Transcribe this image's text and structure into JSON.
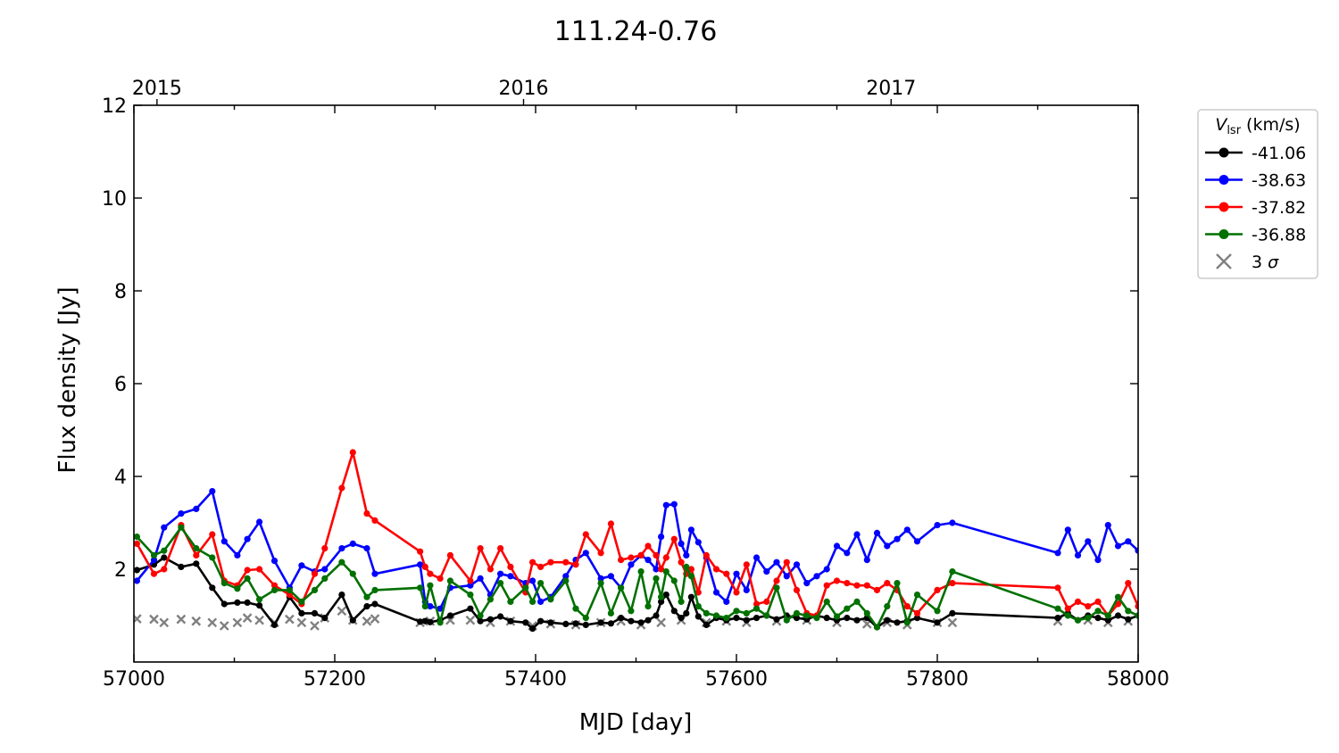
{
  "chart_data": {
    "type": "line",
    "title": "111.24-0.76",
    "xlabel": "MJD [day]",
    "ylabel": "Flux density [Jy]",
    "xlim": [
      57000,
      58000
    ],
    "ylim": [
      0,
      12
    ],
    "x_ticks": [
      57000,
      57200,
      57400,
      57600,
      57800,
      58000
    ],
    "x_tick_labels": [
      "57000",
      "57200",
      "57400",
      "57600",
      "57800",
      "58000"
    ],
    "y_ticks": [
      2,
      4,
      6,
      8,
      10,
      12
    ],
    "y_tick_labels": [
      "2",
      "4",
      "6",
      "8",
      "10",
      "12"
    ],
    "top_axis": {
      "ticks": [
        57023,
        57388,
        57754
      ],
      "labels": [
        "2015",
        "2016",
        "2017"
      ]
    },
    "grid": false,
    "legend": {
      "title_symbol": "V",
      "title_subscript": "lsr",
      "title_unit": "(km/s)",
      "placement": "outside-right",
      "sigma_label_prefix": "3 ",
      "sigma_label_symbol": "σ"
    },
    "series": [
      {
        "name": "-41.06",
        "color": "#000000",
        "x": [
          57003,
          57020,
          57030,
          57047,
          57062,
          57078,
          57090,
          57103,
          57113,
          57125,
          57140,
          57155,
          57167,
          57180,
          57190,
          57207,
          57218,
          57232,
          57240,
          57285,
          57290,
          57295,
          57305,
          57315,
          57335,
          57345,
          57355,
          57365,
          57375,
          57390,
          57397,
          57405,
          57415,
          57430,
          57440,
          57450,
          57465,
          57475,
          57485,
          57495,
          57505,
          57512,
          57520,
          57525,
          57530,
          57538,
          57545,
          57550,
          57555,
          57562,
          57570,
          57580,
          57590,
          57600,
          57610,
          57620,
          57630,
          57640,
          57650,
          57660,
          57670,
          57680,
          57690,
          57700,
          57710,
          57720,
          57730,
          57740,
          57750,
          57760,
          57770,
          57780,
          57800,
          57815,
          57920,
          57930,
          57940,
          57950,
          57960,
          57970,
          57980,
          57990,
          58000
        ],
        "y": [
          1.98,
          2.1,
          2.25,
          2.05,
          2.12,
          1.6,
          1.25,
          1.28,
          1.28,
          1.22,
          0.8,
          1.4,
          1.05,
          1.05,
          0.95,
          1.45,
          0.9,
          1.2,
          1.25,
          0.87,
          0.88,
          0.86,
          0.9,
          1.0,
          1.15,
          0.88,
          0.92,
          0.98,
          0.88,
          0.85,
          0.72,
          0.88,
          0.85,
          0.82,
          0.83,
          0.8,
          0.85,
          0.83,
          0.95,
          0.88,
          0.85,
          0.9,
          1.0,
          1.3,
          1.45,
          1.1,
          0.95,
          1.05,
          1.4,
          0.98,
          0.8,
          0.95,
          0.9,
          0.95,
          0.9,
          0.95,
          1.0,
          0.92,
          1.0,
          0.95,
          0.92,
          1.0,
          0.95,
          0.9,
          0.95,
          0.9,
          0.95,
          0.75,
          0.9,
          0.85,
          0.88,
          0.95,
          0.85,
          1.05,
          0.95,
          1.05,
          0.9,
          1.0,
          0.95,
          0.9,
          1.0,
          0.92,
          1.0
        ]
      },
      {
        "name": "-38.63",
        "color": "#0000ff",
        "x": [
          57003,
          57020,
          57030,
          57047,
          57062,
          57078,
          57090,
          57103,
          57113,
          57125,
          57140,
          57155,
          57167,
          57180,
          57190,
          57207,
          57218,
          57232,
          57240,
          57285,
          57290,
          57295,
          57305,
          57315,
          57335,
          57345,
          57355,
          57365,
          57375,
          57390,
          57397,
          57405,
          57415,
          57430,
          57440,
          57450,
          57465,
          57475,
          57485,
          57495,
          57505,
          57512,
          57520,
          57525,
          57530,
          57538,
          57545,
          57550,
          57555,
          57562,
          57570,
          57580,
          57590,
          57600,
          57610,
          57620,
          57630,
          57640,
          57650,
          57660,
          57670,
          57680,
          57690,
          57700,
          57710,
          57720,
          57730,
          57740,
          57750,
          57760,
          57770,
          57780,
          57800,
          57815,
          57920,
          57930,
          57940,
          57950,
          57960,
          57970,
          57980,
          57990,
          58000
        ],
        "y": [
          1.75,
          2.2,
          2.9,
          3.2,
          3.3,
          3.68,
          2.6,
          2.3,
          2.65,
          3.02,
          2.18,
          1.6,
          2.08,
          1.95,
          2.0,
          2.45,
          2.55,
          2.45,
          1.9,
          2.1,
          1.3,
          1.2,
          1.15,
          1.6,
          1.65,
          1.8,
          1.45,
          1.9,
          1.85,
          1.7,
          1.75,
          1.3,
          1.4,
          1.85,
          2.2,
          2.35,
          1.8,
          1.85,
          1.6,
          2.1,
          2.3,
          2.2,
          2.0,
          2.7,
          3.38,
          3.4,
          2.55,
          2.3,
          2.85,
          2.58,
          2.25,
          1.5,
          1.3,
          1.9,
          1.55,
          2.25,
          1.95,
          2.15,
          1.85,
          2.1,
          1.7,
          1.85,
          2.0,
          2.5,
          2.35,
          2.75,
          2.2,
          2.78,
          2.5,
          2.65,
          2.85,
          2.6,
          2.95,
          3.0,
          2.35,
          2.85,
          2.3,
          2.6,
          2.2,
          2.95,
          2.5,
          2.6,
          2.4
        ]
      },
      {
        "name": "-37.82",
        "color": "#ff0000",
        "x": [
          57003,
          57020,
          57030,
          57047,
          57062,
          57078,
          57090,
          57103,
          57113,
          57125,
          57140,
          57155,
          57167,
          57180,
          57190,
          57207,
          57218,
          57232,
          57240,
          57285,
          57290,
          57295,
          57305,
          57315,
          57335,
          57345,
          57355,
          57365,
          57375,
          57390,
          57397,
          57405,
          57415,
          57430,
          57440,
          57450,
          57465,
          57475,
          57485,
          57495,
          57505,
          57512,
          57520,
          57525,
          57530,
          57538,
          57545,
          57550,
          57555,
          57562,
          57570,
          57580,
          57590,
          57600,
          57610,
          57620,
          57630,
          57640,
          57650,
          57660,
          57670,
          57680,
          57690,
          57700,
          57710,
          57720,
          57730,
          57740,
          57750,
          57760,
          57770,
          57780,
          57800,
          57815,
          57920,
          57930,
          57940,
          57950,
          57960,
          57970,
          57980,
          57990,
          58000
        ],
        "y": [
          2.55,
          1.9,
          2.0,
          2.95,
          2.3,
          2.75,
          1.75,
          1.65,
          1.98,
          2.0,
          1.65,
          1.45,
          1.25,
          1.9,
          2.45,
          3.75,
          4.52,
          3.2,
          3.05,
          2.38,
          2.05,
          1.9,
          1.8,
          2.3,
          1.75,
          2.45,
          2.0,
          2.45,
          2.05,
          1.5,
          2.15,
          2.05,
          2.15,
          2.15,
          2.1,
          2.75,
          2.35,
          2.98,
          2.2,
          2.25,
          2.3,
          2.5,
          2.3,
          2.0,
          2.25,
          2.65,
          2.15,
          1.9,
          2.0,
          1.5,
          2.3,
          2.0,
          1.9,
          1.5,
          2.1,
          1.25,
          1.3,
          1.75,
          2.15,
          1.55,
          1.05,
          1.0,
          1.65,
          1.75,
          1.7,
          1.65,
          1.65,
          1.55,
          1.7,
          1.55,
          1.2,
          1.05,
          1.55,
          1.7,
          1.6,
          1.15,
          1.3,
          1.2,
          1.3,
          1.0,
          1.25,
          1.7,
          1.2
        ]
      },
      {
        "name": "-36.88",
        "color": "#007000",
        "x": [
          57003,
          57020,
          57030,
          57047,
          57062,
          57078,
          57090,
          57103,
          57113,
          57125,
          57140,
          57155,
          57167,
          57180,
          57190,
          57207,
          57218,
          57232,
          57240,
          57285,
          57290,
          57295,
          57305,
          57315,
          57335,
          57345,
          57355,
          57365,
          57375,
          57390,
          57397,
          57405,
          57415,
          57430,
          57440,
          57450,
          57465,
          57475,
          57485,
          57495,
          57505,
          57512,
          57520,
          57525,
          57530,
          57538,
          57545,
          57550,
          57555,
          57562,
          57570,
          57580,
          57590,
          57600,
          57610,
          57620,
          57630,
          57640,
          57650,
          57660,
          57670,
          57680,
          57690,
          57700,
          57710,
          57720,
          57730,
          57740,
          57750,
          57760,
          57770,
          57780,
          57800,
          57815,
          57920,
          57930,
          57940,
          57950,
          57960,
          57970,
          57980,
          57990,
          58000
        ],
        "y": [
          2.7,
          2.3,
          2.4,
          2.9,
          2.45,
          2.25,
          1.7,
          1.58,
          1.8,
          1.35,
          1.55,
          1.55,
          1.3,
          1.55,
          1.8,
          2.15,
          1.9,
          1.4,
          1.55,
          1.6,
          1.2,
          1.65,
          0.85,
          1.75,
          1.45,
          1.0,
          1.35,
          1.7,
          1.3,
          1.6,
          1.3,
          1.7,
          1.35,
          1.75,
          1.15,
          0.95,
          1.7,
          1.05,
          1.6,
          1.1,
          1.95,
          1.2,
          1.8,
          1.4,
          1.95,
          1.75,
          1.3,
          2.05,
          1.85,
          1.2,
          1.05,
          1.0,
          0.95,
          1.1,
          1.05,
          1.15,
          1.0,
          1.6,
          0.9,
          1.05,
          1.0,
          0.95,
          1.3,
          0.98,
          1.15,
          1.3,
          1.05,
          0.75,
          1.2,
          1.7,
          0.85,
          1.45,
          1.1,
          1.95,
          1.15,
          1.0,
          0.9,
          0.95,
          1.1,
          1.0,
          1.4,
          1.1,
          1.0
        ]
      },
      {
        "name": "3 σ",
        "color": "#808080",
        "marker": "x",
        "x": [
          57003,
          57020,
          57030,
          57047,
          57062,
          57078,
          57090,
          57103,
          57113,
          57125,
          57140,
          57155,
          57167,
          57180,
          57190,
          57207,
          57218,
          57232,
          57240,
          57285,
          57295,
          57315,
          57335,
          57355,
          57375,
          57397,
          57415,
          57440,
          57465,
          57485,
          57505,
          57525,
          57545,
          57570,
          57590,
          57610,
          57640,
          57670,
          57700,
          57730,
          57750,
          57770,
          57800,
          57815,
          57920,
          57950,
          57970,
          57990
        ],
        "y": [
          0.93,
          0.92,
          0.85,
          0.92,
          0.88,
          0.85,
          0.78,
          0.85,
          0.95,
          0.9,
          0.85,
          0.92,
          0.85,
          0.78,
          0.95,
          1.1,
          0.9,
          0.88,
          0.93,
          0.85,
          0.88,
          0.9,
          0.9,
          0.85,
          0.88,
          0.78,
          0.82,
          0.8,
          0.85,
          0.88,
          0.8,
          0.85,
          0.9,
          0.85,
          0.88,
          0.85,
          0.88,
          0.9,
          0.85,
          0.82,
          0.85,
          0.8,
          0.85,
          0.85,
          0.88,
          0.9,
          0.85,
          0.88
        ]
      }
    ]
  }
}
